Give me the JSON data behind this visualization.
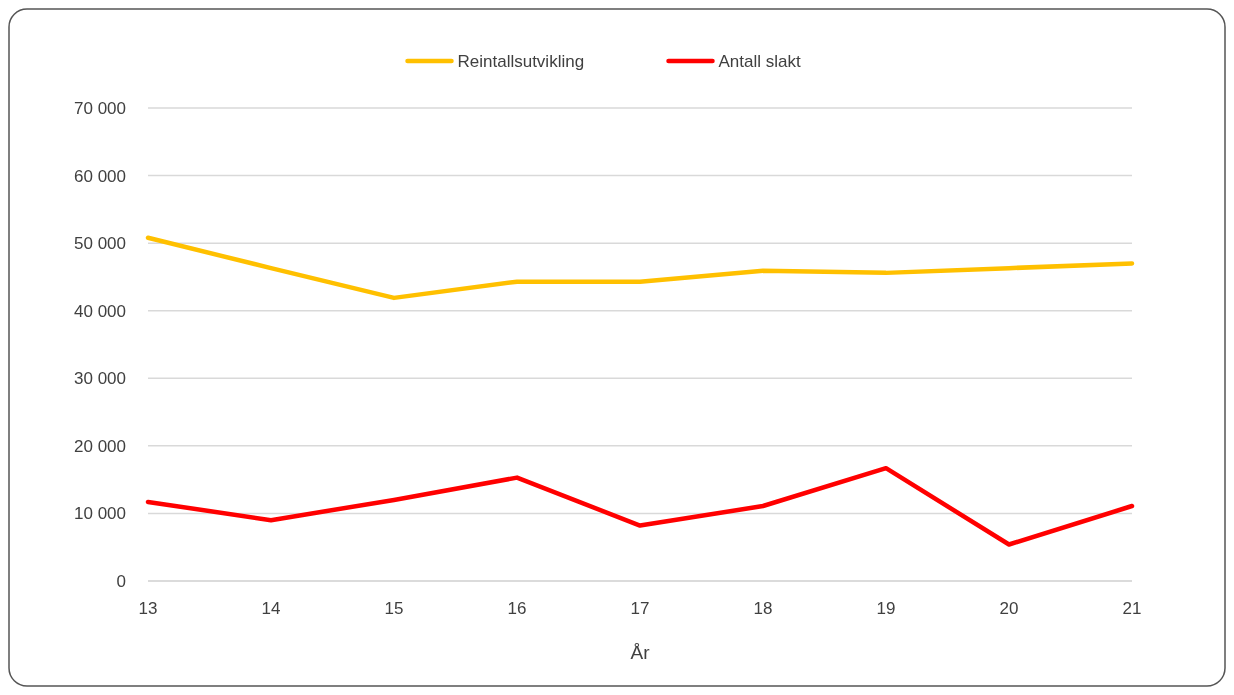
{
  "chart_data": {
    "type": "line",
    "xlabel": "År",
    "categories": [
      "13",
      "14",
      "15",
      "16",
      "17",
      "18",
      "19",
      "20",
      "21"
    ],
    "series": [
      {
        "name": "Reintallsutvikling",
        "color": "#ffc000",
        "values": [
          50800,
          46300,
          41900,
          44300,
          44300,
          45900,
          45600,
          46300,
          47000
        ]
      },
      {
        "name": "Antall slakt",
        "color": "#ff0000",
        "values": [
          11700,
          9000,
          12000,
          15300,
          8200,
          11100,
          16700,
          5400,
          11100
        ]
      }
    ],
    "ylim": [
      0,
      70000
    ],
    "yticks": [
      {
        "value": 0,
        "label": "0"
      },
      {
        "value": 10000,
        "label": "10 000"
      },
      {
        "value": 20000,
        "label": "20 000"
      },
      {
        "value": 30000,
        "label": "30 000"
      },
      {
        "value": 40000,
        "label": "40 000"
      },
      {
        "value": 50000,
        "label": "50 000"
      },
      {
        "value": 60000,
        "label": "60 000"
      },
      {
        "value": 70000,
        "label": "70 000"
      }
    ],
    "grid": "y",
    "legend": "top",
    "marker": "none",
    "line_style": "solid"
  }
}
